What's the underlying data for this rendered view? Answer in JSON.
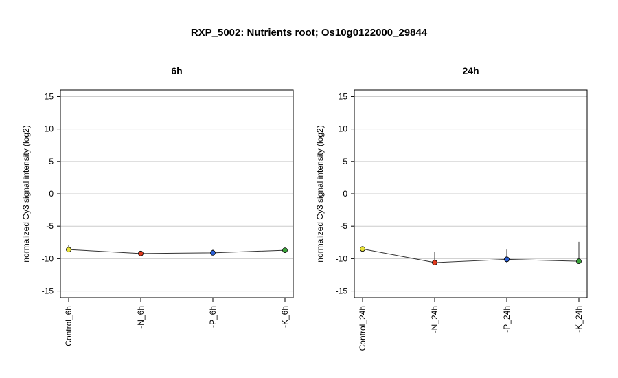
{
  "figure_title": "RXP_5002: Nutrients root; Os10g0122000_29844",
  "chart_data": [
    {
      "type": "line",
      "title": "6h",
      "ylabel": "normalized Cy3 signal intensity (log2)",
      "xlabel": "",
      "ylim": [
        -16,
        16
      ],
      "yticks": [
        -15,
        -10,
        -5,
        0,
        5,
        10,
        15
      ],
      "grid": true,
      "categories": [
        "Control_6h",
        "-N_6h",
        "-P_6h",
        "-K_6h"
      ],
      "values": [
        -8.6,
        -9.2,
        -9.1,
        -8.7
      ],
      "error_upper": [
        -7.9,
        -9.0,
        -8.6,
        -8.5
      ],
      "error_lower": [
        -8.6,
        -9.2,
        -9.4,
        -8.7
      ],
      "point_colors": [
        "#e8e23a",
        "#e03a1e",
        "#2a5fd6",
        "#3aa43a"
      ]
    },
    {
      "type": "line",
      "title": "24h",
      "ylabel": "normalized Cy3 signal intensity (log2)",
      "xlabel": "",
      "ylim": [
        -16,
        16
      ],
      "yticks": [
        -15,
        -10,
        -5,
        0,
        5,
        10,
        15
      ],
      "grid": true,
      "categories": [
        "Control_24h",
        "-N_24h",
        "-P_24h",
        "-K_24h"
      ],
      "values": [
        -8.5,
        -10.6,
        -10.1,
        -10.4
      ],
      "error_upper": [
        -8.3,
        -8.9,
        -8.6,
        -7.4
      ],
      "error_lower": [
        -8.5,
        -10.6,
        -10.6,
        -10.4
      ],
      "point_colors": [
        "#e8e23a",
        "#e03a1e",
        "#2a5fd6",
        "#3aa43a"
      ]
    }
  ]
}
